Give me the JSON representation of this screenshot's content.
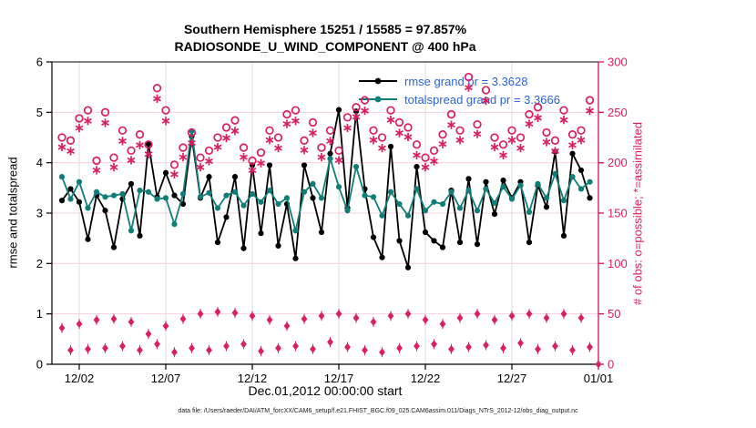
{
  "header": {
    "title_line1": "Southern Hemisphere 15251 / 15585 = 97.857%",
    "title_line2": "RADIOSONDE_U_WIND_COMPONENT @ 400 hPa"
  },
  "footer": {
    "datafile": "data file: /Users/raeder/DAI/ATM_forcXX/CAM6_setup/f.e21.FHIST_BGC.f09_025.CAM6assim.011/Diags_NTrS_2012-12/obs_diag_output.nc"
  },
  "chart_data": {
    "type": "line",
    "title": "Southern Hemisphere 15251 / 15585 = 97.857%",
    "subtitle": "RADIOSONDE_U_WIND_COMPONENT @ 400 hPa",
    "xlabel": "Dec.01,2012 00:00:00 start",
    "ylabel_left": "rmse and totalspread",
    "ylabel_right": "# of obs: o=possible; *=assimilated",
    "ylim_left": [
      0,
      6
    ],
    "yticks_left": [
      0,
      1,
      2,
      3,
      4,
      5,
      6
    ],
    "ylim_right": [
      0,
      300
    ],
    "yticks_right": [
      0,
      50,
      100,
      150,
      200,
      250,
      300
    ],
    "xtick_labels": [
      "12/02",
      "12/07",
      "12/12",
      "12/17",
      "12/22",
      "12/27",
      "01/01"
    ],
    "xtick_bin_index": [
      2,
      12,
      22,
      32,
      42,
      52,
      62
    ],
    "x": {
      "start_day": 0,
      "step_days": 0.5,
      "n_bins": 62
    },
    "grid": "on",
    "legend_position": "top-inside",
    "legend": [
      {
        "label": "rmse grand pr = 3.3628",
        "color": "#000000"
      },
      {
        "label": "totalspread grand pr = 3.3666",
        "color": "#0f7e78"
      }
    ],
    "series": [
      {
        "name": "rmse",
        "axis": "left",
        "color": "#000000",
        "values": [
          3.25,
          3.48,
          3.22,
          2.48,
          3.35,
          3.05,
          2.32,
          3.28,
          3.58,
          2.55,
          4.37,
          3.32,
          3.8,
          3.35,
          3.18,
          4.52,
          3.3,
          3.72,
          2.42,
          2.92,
          3.72,
          2.3,
          3.95,
          2.6,
          3.95,
          2.35,
          3.18,
          2.1,
          3.95,
          3.3,
          2.62,
          4.18,
          5.05,
          3.1,
          5.02,
          3.48,
          2.52,
          2.12,
          4.32,
          2.45,
          1.92,
          3.92,
          2.62,
          2.45,
          2.32,
          3.45,
          2.42,
          3.68,
          2.38,
          3.62,
          2.98,
          3.65,
          3.3,
          3.62,
          2.42,
          3.55,
          3.12,
          4.22,
          2.55,
          4.18,
          3.85,
          3.3
        ]
      },
      {
        "name": "totalspread",
        "axis": "left",
        "color": "#0f7e78",
        "values": [
          3.72,
          3.28,
          3.62,
          3.1,
          3.42,
          3.32,
          3.35,
          3.38,
          2.65,
          3.45,
          3.42,
          3.28,
          3.3,
          2.78,
          3.38,
          4.63,
          3.32,
          3.4,
          3.1,
          3.35,
          3.42,
          3.15,
          3.38,
          3.22,
          3.45,
          3.18,
          3.3,
          2.65,
          3.42,
          3.58,
          3.3,
          4.08,
          3.52,
          3.05,
          3.92,
          3.35,
          3.32,
          2.95,
          3.42,
          3.18,
          2.95,
          3.48,
          3.05,
          3.22,
          3.18,
          3.42,
          3.1,
          3.45,
          3.05,
          3.48,
          3.2,
          3.52,
          3.28,
          3.55,
          3.02,
          3.58,
          3.3,
          3.78,
          3.25,
          3.72,
          3.48,
          3.62
        ]
      }
    ],
    "counts": {
      "axis": "right",
      "color": "#d81f5f",
      "possible": [
        225,
        222,
        244,
        252,
        202,
        250,
        205,
        232,
        212,
        228,
        218,
        274,
        252,
        198,
        215,
        230,
        205,
        212,
        225,
        235,
        242,
        215,
        202,
        210,
        232,
        225,
        248,
        252,
        222,
        240,
        215,
        232,
        212,
        245,
        255,
        262,
        232,
        225,
        252,
        240,
        235,
        218,
        205,
        212,
        228,
        248,
        232,
        285,
        238,
        272,
        225,
        218,
        232,
        225,
        248,
        255,
        230,
        222,
        252,
        228,
        232,
        262
      ],
      "assimilated": [
        220,
        216,
        239,
        246,
        197,
        244,
        200,
        226,
        207,
        222,
        213,
        268,
        246,
        193,
        210,
        224,
        200,
        206,
        220,
        229,
        236,
        210,
        197,
        204,
        227,
        219,
        243,
        246,
        217,
        234,
        210,
        226,
        207,
        239,
        250,
        256,
        227,
        219,
        247,
        234,
        230,
        212,
        200,
        206,
        223,
        242,
        227,
        279,
        233,
        266,
        220,
        212,
        227,
        219,
        243,
        249,
        225,
        216,
        247,
        222,
        227,
        256
      ],
      "low_band_markers": [
        36,
        14,
        40,
        15,
        44,
        16,
        45,
        18,
        42,
        14,
        30,
        20,
        38,
        12,
        45,
        16,
        50,
        14,
        52,
        18,
        51,
        20,
        48,
        13,
        44,
        16,
        38,
        18,
        45,
        15,
        48,
        22,
        50,
        17,
        46,
        14,
        42,
        12,
        48,
        16,
        50,
        18,
        44,
        20,
        40,
        15,
        46,
        17,
        50,
        19,
        44,
        16,
        48,
        21,
        50,
        15,
        46,
        18,
        50,
        14,
        46,
        17,
        0
      ]
    },
    "colors": {
      "left_axis": "#000000",
      "right_axis": "#d81f5f",
      "rmse": "#000000",
      "totalspread": "#0f7e78",
      "legend_text": "#2a64da",
      "grid_horizontal": "#f8d0dc",
      "grid_vertical": "#dcdcdc"
    }
  }
}
